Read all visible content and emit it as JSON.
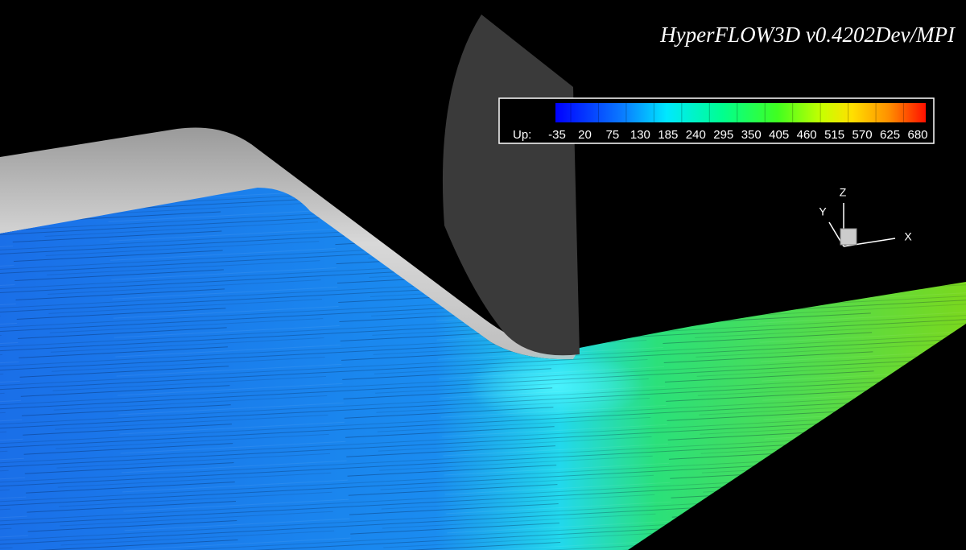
{
  "title": "HyperFLOW3D v0.4202Dev/MPI",
  "colorbar": {
    "label": "Up:",
    "ticks": [
      -35,
      20,
      75,
      130,
      185,
      240,
      295,
      350,
      405,
      460,
      515,
      570,
      625,
      680
    ]
  },
  "axes_triad": {
    "x": "X",
    "y": "Y",
    "z": "Z"
  }
}
